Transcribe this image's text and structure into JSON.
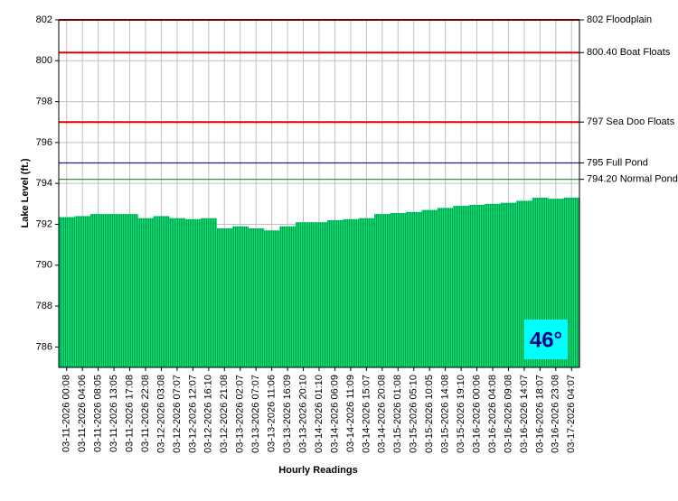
{
  "chart_data": {
    "type": "bar",
    "y_label": "Lake Level (ft.)",
    "x_label": "Hourly Readings",
    "categories": [
      "03-11-2026 00:08",
      "03-11-2026 04:06",
      "03-11-2026 08:05",
      "03-11-2026 13:05",
      "03-11-2026 17:08",
      "03-11-2026 22:08",
      "03-12-2026 03:08",
      "03-12-2026 07:07",
      "03-12-2026 12:07",
      "03-12-2026 16:10",
      "03-12-2026 21:08",
      "03-13-2026 02:07",
      "03-13-2026 07:07",
      "03-13-2026 11:06",
      "03-13-2026 16:09",
      "03-13-2026 20:10",
      "03-14-2026 01:10",
      "03-14-2026 06:09",
      "03-14-2026 11:09",
      "03-14-2026 15:07",
      "03-14-2026 20:08",
      "03-15-2026 01:08",
      "03-15-2026 05:10",
      "03-15-2026 10:05",
      "03-15-2026 14:08",
      "03-15-2026 19:10",
      "03-16-2026 00:06",
      "03-16-2026 04:08",
      "03-16-2026 09:08",
      "03-16-2026 14:07",
      "03-16-2026 18:07",
      "03-16-2026 23:08",
      "03-17-2026 04:07"
    ],
    "values": [
      792.35,
      792.4,
      792.5,
      792.5,
      792.5,
      792.3,
      792.4,
      792.3,
      792.25,
      792.3,
      791.8,
      791.9,
      791.8,
      791.7,
      791.9,
      792.1,
      792.1,
      792.2,
      792.25,
      792.3,
      792.5,
      792.55,
      792.6,
      792.7,
      792.8,
      792.9,
      792.95,
      793.0,
      793.05,
      793.15,
      793.3,
      793.25,
      793.3
    ],
    "color": "#00e676",
    "ylim": [
      785,
      802
    ],
    "yticks": [
      786,
      788,
      790,
      792,
      794,
      796,
      798,
      800,
      802
    ],
    "grid": true,
    "reference_lines": [
      {
        "value": 802,
        "label": "802 Floodplain",
        "color": "#e00000"
      },
      {
        "value": 800.4,
        "label": "800.40 Boat Floats",
        "color": "#e00000"
      },
      {
        "value": 797,
        "label": "797 Sea Doo Floats",
        "color": "#e00000"
      },
      {
        "value": 795,
        "label": "795 Full Pond",
        "color": "#1a237e"
      },
      {
        "value": 794.2,
        "label": "794.20 Normal Pond",
        "color": "#2e9b2e"
      }
    ],
    "badge": "46°"
  }
}
